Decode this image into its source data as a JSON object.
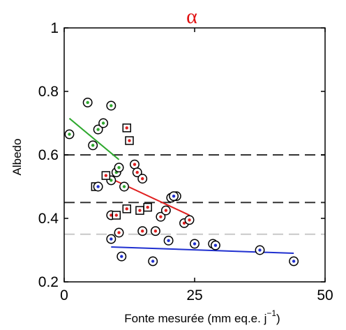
{
  "chart_data": {
    "type": "scatter",
    "title": "α",
    "title_color": "#e01010",
    "xlabel_text": "Fonte mesurée (mm eq.e. j",
    "xlabel_sup": "−1",
    "xlabel_close": ")",
    "ylabel": "Albedo",
    "xlim": [
      0,
      50
    ],
    "ylim": [
      0.2,
      1.0
    ],
    "xticks": [
      0,
      25,
      50
    ],
    "yticks": [
      0.2,
      0.4,
      0.6,
      0.8,
      1.0
    ],
    "ytick_labels": [
      "0.2",
      "0.4",
      "0.6",
      "0.8",
      "1"
    ],
    "xtick_labels": [
      "0",
      "25",
      "50"
    ],
    "grid": false,
    "reference_lines": [
      {
        "y": 0.6,
        "color": "#333333",
        "dash": "dashed"
      },
      {
        "y": 0.45,
        "color": "#333333",
        "dash": "dashed"
      },
      {
        "y": 0.35,
        "color": "#c8c8c8",
        "dash": "dashed"
      }
    ],
    "series": [
      {
        "color": "#2ea82e",
        "marker": "circle",
        "points": [
          [
            1,
            0.665
          ],
          [
            4.5,
            0.765
          ],
          [
            5.5,
            0.63
          ],
          [
            6.5,
            0.68
          ],
          [
            7.5,
            0.7
          ],
          [
            9,
            0.755
          ],
          [
            9,
            0.52
          ],
          [
            10,
            0.545
          ],
          [
            10.5,
            0.56
          ],
          [
            11.5,
            0.5
          ]
        ],
        "fit": [
          [
            1,
            0.715
          ],
          [
            10.5,
            0.585
          ]
        ]
      },
      {
        "color": "#e02020",
        "marker": "mixed",
        "points": [
          [
            6,
            0.5,
            "square"
          ],
          [
            8,
            0.535,
            "square"
          ],
          [
            9,
            0.41,
            "circle"
          ],
          [
            10,
            0.41,
            "square"
          ],
          [
            10.5,
            0.355,
            "circle"
          ],
          [
            12,
            0.685,
            "square"
          ],
          [
            12.5,
            0.645,
            "square"
          ],
          [
            12,
            0.43,
            "square"
          ],
          [
            13.5,
            0.57,
            "circle"
          ],
          [
            14,
            0.545,
            "circle"
          ],
          [
            15,
            0.525,
            "circle"
          ],
          [
            14.5,
            0.425,
            "square"
          ],
          [
            15,
            0.36,
            "circle"
          ],
          [
            16,
            0.435,
            "square"
          ],
          [
            17.5,
            0.36,
            "circle"
          ],
          [
            18.5,
            0.405,
            "circle"
          ],
          [
            19.5,
            0.425,
            "circle"
          ],
          [
            20.5,
            0.465,
            "circle"
          ],
          [
            21.5,
            0.47,
            "circle"
          ],
          [
            23,
            0.385,
            "circle"
          ],
          [
            24,
            0.395,
            "circle"
          ]
        ],
        "fit": [
          [
            9,
            0.525
          ],
          [
            24,
            0.41
          ]
        ]
      },
      {
        "color": "#2030d0",
        "marker": "circle",
        "points": [
          [
            6.5,
            0.5
          ],
          [
            9,
            0.335
          ],
          [
            11,
            0.28
          ],
          [
            17,
            0.265
          ],
          [
            20,
            0.33
          ],
          [
            21,
            0.47
          ],
          [
            25,
            0.32
          ],
          [
            28.5,
            0.32
          ],
          [
            29,
            0.315
          ],
          [
            37.5,
            0.3
          ],
          [
            44,
            0.265
          ]
        ],
        "fit": [
          [
            9,
            0.31
          ],
          [
            44,
            0.29
          ]
        ]
      }
    ]
  }
}
